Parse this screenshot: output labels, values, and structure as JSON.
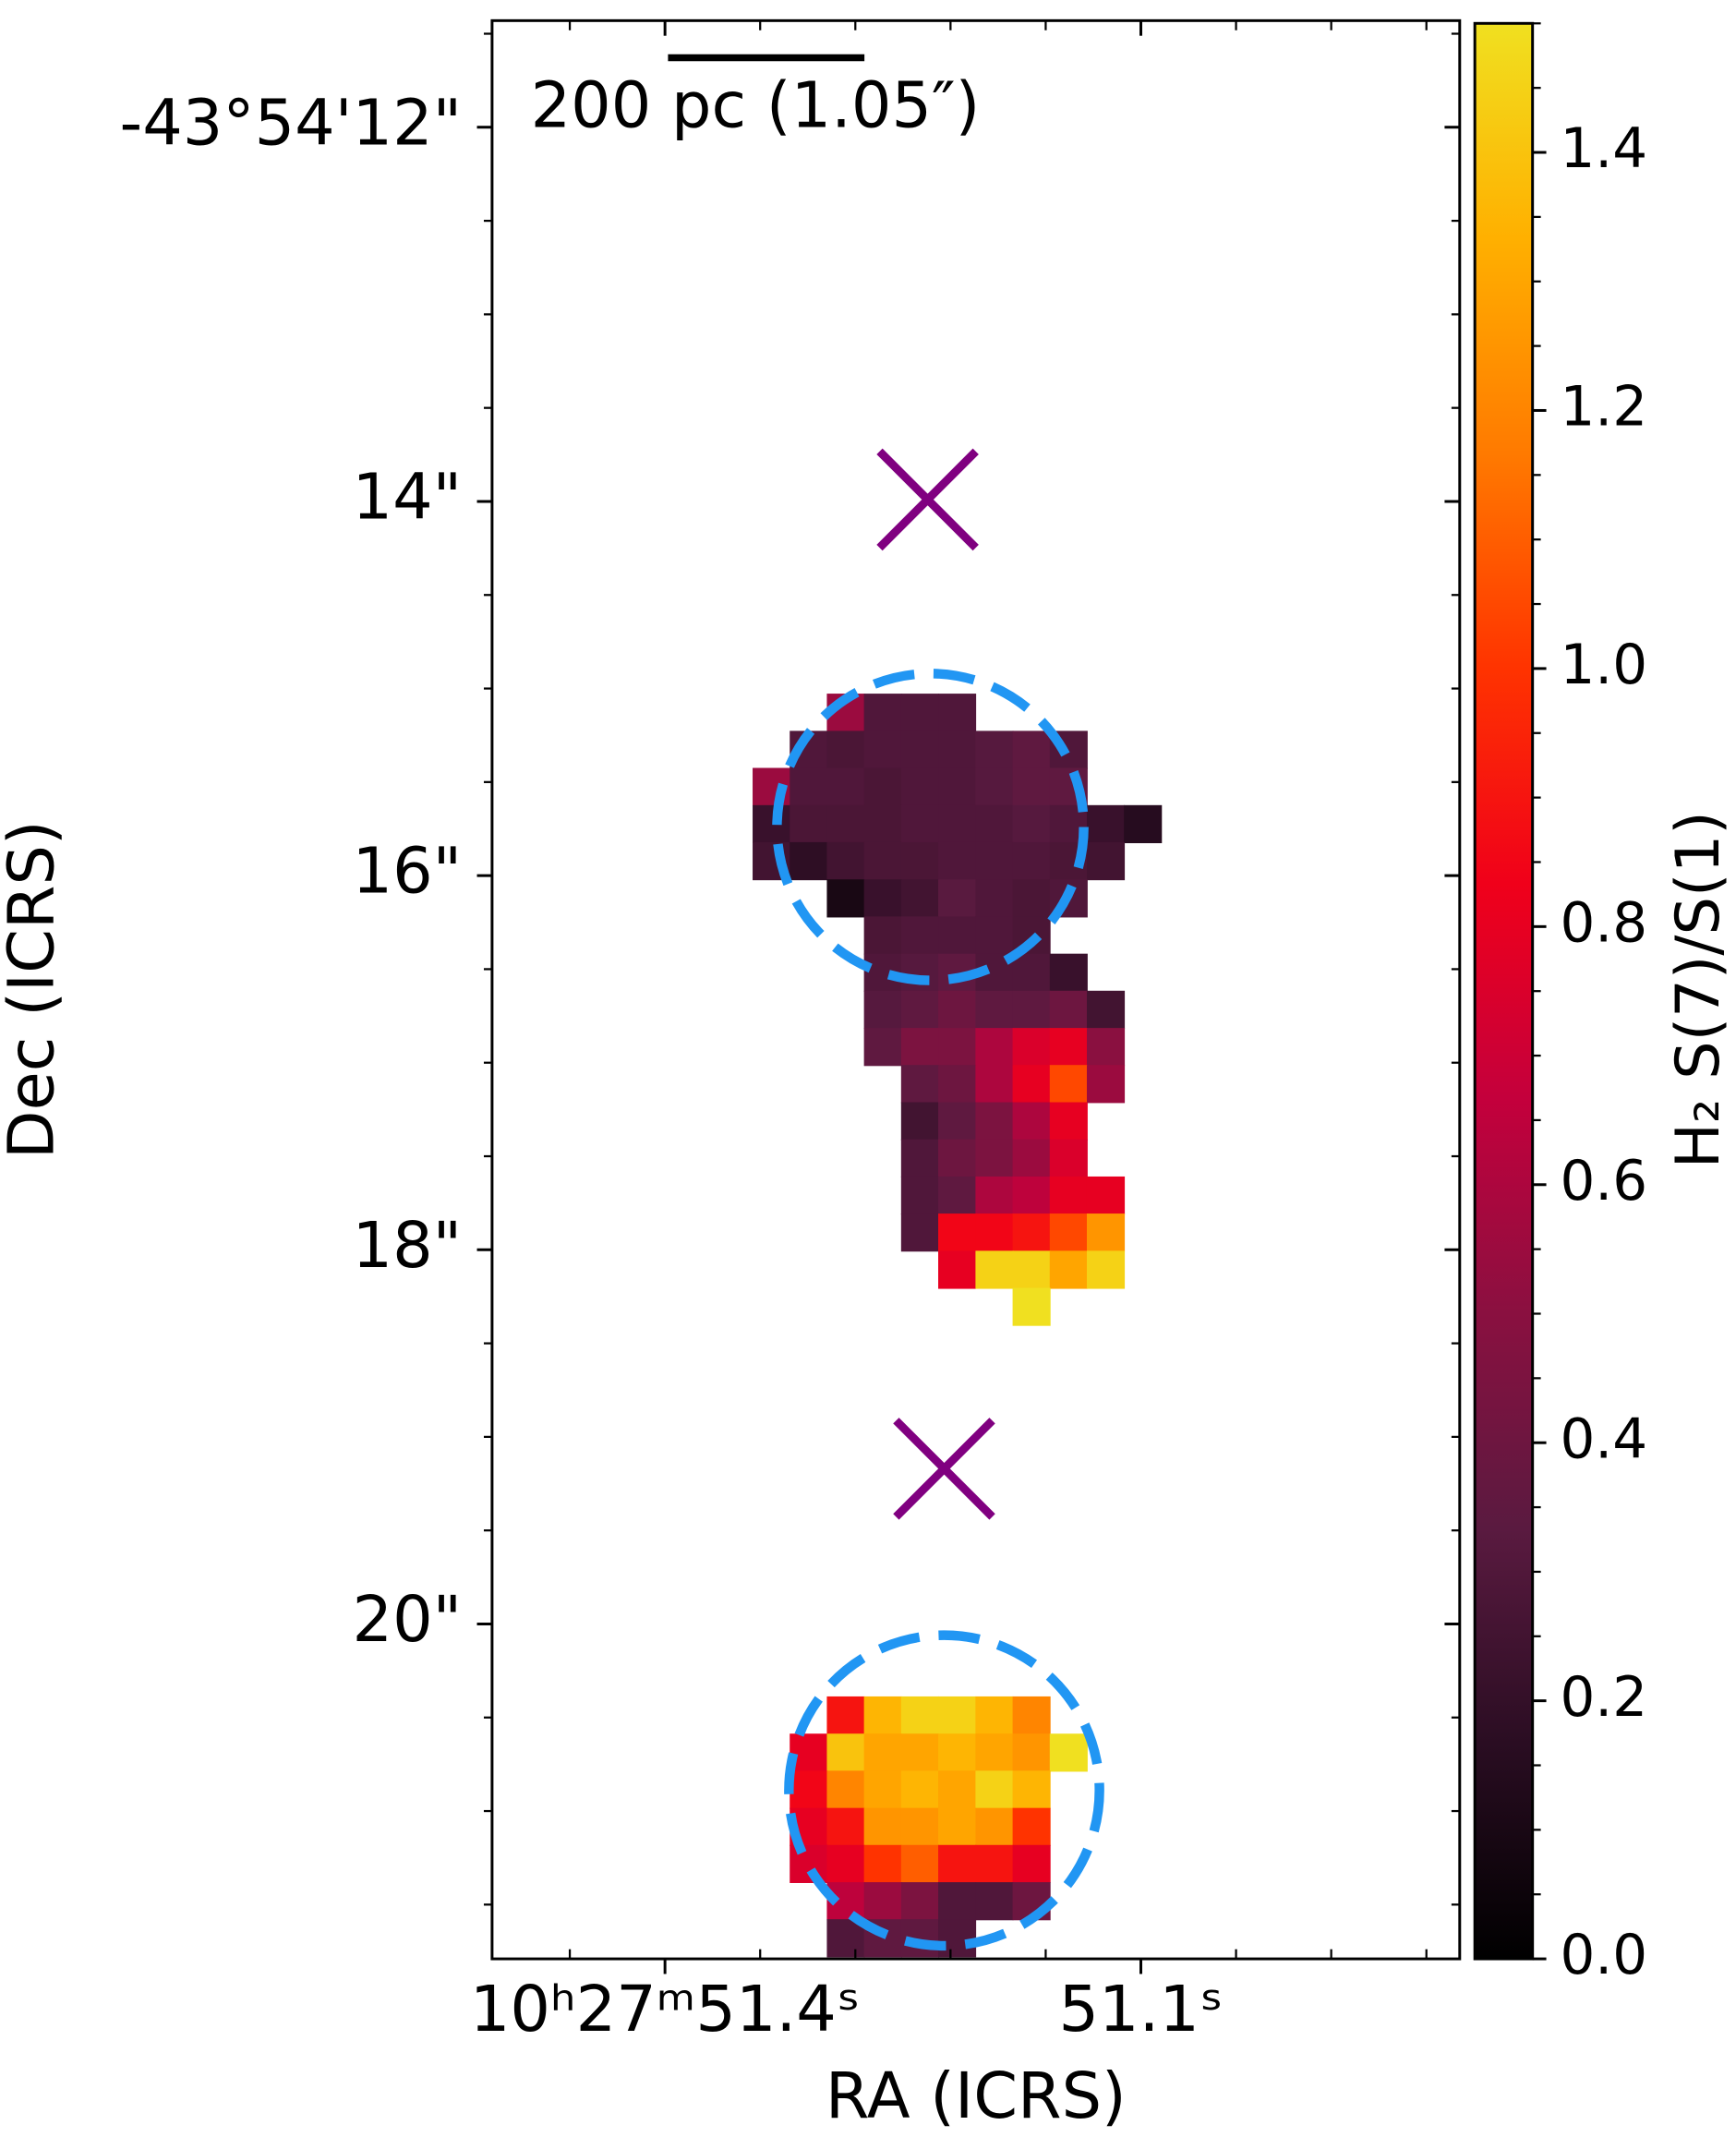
{
  "chart_data": {
    "type": "heatmap",
    "x_label": "RA (ICRS)",
    "y_label": "Dec (ICRS)",
    "colorbar_label": "H₂ S(7)/S(1)",
    "xlim": [
      51.509,
      50.899
    ],
    "ylim": [
      21.79,
      11.43
    ],
    "xticks": [
      {
        "value": 51.4,
        "label": "10ʰ27ᵐ51.4ˢ"
      },
      {
        "value": 51.1,
        "label": "51.1ˢ"
      }
    ],
    "xminorticks": [
      51.46,
      51.34,
      51.28,
      51.22,
      51.16,
      51.04,
      50.98,
      50.92
    ],
    "yticks": [
      {
        "value": 12,
        "label": "-43°54'12\""
      },
      {
        "value": 14,
        "label": "14\""
      },
      {
        "value": 16,
        "label": "16\""
      },
      {
        "value": 18,
        "label": "18\""
      },
      {
        "value": 20,
        "label": "20\""
      }
    ],
    "yminorticks": [
      11.5,
      12.5,
      13,
      13.5,
      14.5,
      15,
      15.5,
      16.5,
      17,
      17.5,
      18.5,
      19,
      19.5,
      20.5,
      21,
      21.5
    ],
    "clim": [
      0,
      1.5
    ],
    "cticks": [
      {
        "value": 0,
        "label": "0.0"
      },
      {
        "value": 0.2,
        "label": "0.2"
      },
      {
        "value": 0.4,
        "label": "0.4"
      },
      {
        "value": 0.6,
        "label": "0.6"
      },
      {
        "value": 0.8,
        "label": "0.8"
      },
      {
        "value": 1.0,
        "label": "1.0"
      },
      {
        "value": 1.2,
        "label": "1.2"
      },
      {
        "value": 1.4,
        "label": "1.4"
      }
    ],
    "cminorticks": [
      0.05,
      0.1,
      0.15,
      0.25,
      0.3,
      0.35,
      0.45,
      0.5,
      0.55,
      0.65,
      0.7,
      0.75,
      0.85,
      0.9,
      0.95,
      1.05,
      1.1,
      1.15,
      1.25,
      1.3,
      1.35,
      1.45,
      1.5
    ],
    "colormap": [
      "#000000",
      "#2a0d22",
      "#5a1a40",
      "#8a1040",
      "#c4003c",
      "#f0001a",
      "#ff3300",
      "#ff7a00",
      "#ffb000",
      "#f0e020"
    ],
    "x": [
      51.3328,
      51.3094,
      51.286,
      51.2626,
      51.2392,
      51.2158,
      51.1923,
      51.1689,
      51.1455,
      51.1221,
      51.0987
    ],
    "y": [
      15.129,
      15.328,
      15.526,
      15.725,
      15.923,
      16.122,
      16.32,
      16.519,
      16.717,
      16.916,
      17.114,
      17.313,
      17.511,
      17.71,
      17.908,
      18.107,
      18.305,
      20.489,
      20.688,
      20.886,
      21.085,
      21.283,
      21.482,
      21.68
    ],
    "z": [
      [
        null,
        null,
        0.55,
        0.3,
        0.3,
        0.3,
        null,
        null,
        null,
        null,
        null
      ],
      [
        null,
        0.3,
        0.28,
        0.3,
        0.3,
        0.3,
        0.32,
        0.35,
        0.3,
        null,
        null
      ],
      [
        0.55,
        0.3,
        0.3,
        0.28,
        0.3,
        0.3,
        0.32,
        0.35,
        0.35,
        null,
        null
      ],
      [
        0.22,
        0.28,
        0.28,
        0.28,
        0.3,
        0.3,
        0.3,
        0.32,
        0.3,
        0.22,
        0.15
      ],
      [
        0.25,
        0.18,
        0.25,
        0.28,
        0.28,
        0.3,
        0.3,
        0.3,
        0.28,
        0.25,
        null
      ],
      [
        null,
        null,
        0.1,
        0.22,
        0.25,
        0.33,
        0.3,
        0.28,
        0.3,
        null,
        null
      ],
      [
        null,
        null,
        null,
        0.28,
        0.3,
        0.3,
        0.3,
        0.28,
        null,
        null,
        null
      ],
      [
        null,
        null,
        null,
        0.3,
        0.32,
        0.35,
        0.3,
        0.3,
        0.22,
        null,
        null
      ],
      [
        null,
        null,
        null,
        0.32,
        0.35,
        0.4,
        0.35,
        0.35,
        0.4,
        0.25,
        null
      ],
      [
        null,
        null,
        null,
        0.35,
        0.45,
        0.45,
        0.6,
        0.75,
        0.8,
        0.5,
        null
      ],
      [
        null,
        null,
        null,
        null,
        0.35,
        0.4,
        0.6,
        0.8,
        1.05,
        0.55,
        null
      ],
      [
        null,
        null,
        null,
        null,
        0.25,
        0.35,
        0.45,
        0.6,
        0.8,
        null,
        null
      ],
      [
        null,
        null,
        null,
        null,
        0.3,
        0.4,
        0.45,
        0.55,
        0.75,
        null,
        null
      ],
      [
        null,
        null,
        null,
        null,
        0.3,
        0.35,
        0.6,
        0.65,
        0.8,
        0.8,
        null
      ],
      [
        null,
        null,
        null,
        null,
        0.3,
        0.85,
        0.85,
        0.9,
        1.05,
        1.25,
        null
      ],
      [
        null,
        null,
        null,
        null,
        null,
        0.8,
        1.45,
        1.45,
        1.3,
        1.45,
        null
      ],
      [
        null,
        null,
        null,
        null,
        null,
        null,
        null,
        1.5,
        null,
        null,
        null
      ],
      [
        null,
        null,
        0.9,
        1.35,
        1.45,
        1.45,
        1.35,
        1.2,
        null,
        null,
        null
      ],
      [
        null,
        0.8,
        1.4,
        1.3,
        1.3,
        1.35,
        1.3,
        1.25,
        1.5,
        null,
        null
      ],
      [
        null,
        0.85,
        1.2,
        1.3,
        1.35,
        1.3,
        1.45,
        1.35,
        null,
        null,
        null
      ],
      [
        null,
        0.8,
        0.9,
        1.25,
        1.25,
        1.3,
        1.25,
        1.0,
        null,
        null,
        null
      ],
      [
        null,
        0.75,
        0.8,
        1.0,
        1.1,
        0.9,
        0.9,
        0.8,
        null,
        null,
        null
      ],
      [
        null,
        null,
        0.65,
        0.55,
        0.45,
        0.3,
        0.3,
        0.4,
        null,
        null,
        null
      ],
      [
        null,
        null,
        0.3,
        0.35,
        0.35,
        0.3,
        null,
        null,
        null,
        null,
        null
      ]
    ],
    "markers": {
      "color": "#800080",
      "points": [
        {
          "x": 51.2344,
          "y": 13.99
        },
        {
          "x": 51.224,
          "y": 19.17
        }
      ]
    },
    "circles": {
      "color": "#2196f3",
      "items": [
        {
          "x": 51.2327,
          "y": 15.74,
          "r": 0.82
        },
        {
          "x": 51.224,
          "y": 20.89,
          "r": 0.83
        }
      ]
    },
    "scalebar": {
      "label": "200 pc (1.05″)",
      "length": 1.05
    }
  }
}
